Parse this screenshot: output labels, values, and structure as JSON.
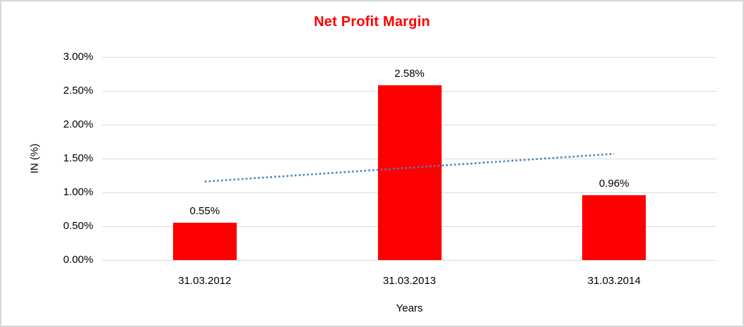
{
  "chart_data": {
    "type": "bar",
    "title": "Net Profit Margin",
    "xlabel": "Years",
    "ylabel": "IN (%)",
    "categories": [
      "31.03.2012",
      "31.03.2013",
      "31.03.2014"
    ],
    "values": [
      0.55,
      2.58,
      0.96
    ],
    "data_labels": [
      "0.55%",
      "2.58%",
      "0.96%"
    ],
    "ylim": [
      0,
      3
    ],
    "ytick_values": [
      0,
      0.5,
      1,
      1.5,
      2,
      2.5,
      3
    ],
    "ytick_labels": [
      "0.00%",
      "0.50%",
      "1.00%",
      "1.50%",
      "2.00%",
      "2.50%",
      "3.00%"
    ],
    "grid": "horizontal",
    "legend": "none",
    "colors": {
      "bar": "#FF0000",
      "title": "#FF0000",
      "gridline": "#d9d9d9",
      "trendline": "#4F81BD",
      "text": "#000000"
    },
    "trendline": {
      "type": "linear",
      "style": "dotted",
      "start_value": 1.16,
      "end_value": 1.57
    }
  }
}
